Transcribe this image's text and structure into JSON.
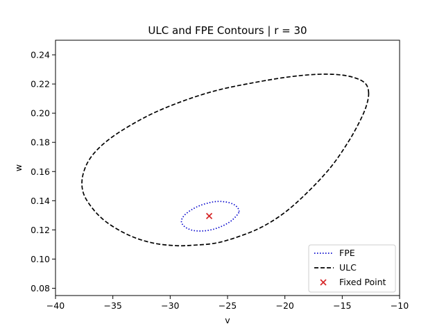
{
  "chart_data": {
    "type": "line",
    "title": "ULC and FPE Contours | r = 30",
    "xlabel": "v",
    "ylabel": "w",
    "xlim": [
      -40,
      -10
    ],
    "ylim": [
      0.075,
      0.25
    ],
    "xticks": [
      -40,
      -35,
      -30,
      -25,
      -20,
      -15,
      -10
    ],
    "xtick_labels": [
      "−40",
      "−35",
      "−30",
      "−25",
      "−20",
      "−15",
      "−10"
    ],
    "yticks": [
      0.08,
      0.1,
      0.12,
      0.14,
      0.16,
      0.18,
      0.2,
      0.22,
      0.24
    ],
    "ytick_labels": [
      "0.08",
      "0.10",
      "0.12",
      "0.14",
      "0.16",
      "0.18",
      "0.20",
      "0.22",
      "0.24"
    ],
    "grid": false,
    "legend_position": "bottom-right",
    "series": [
      {
        "name": "FPE",
        "style": "dotted",
        "color": "#0000cc",
        "x": [
          -24.0,
          -24.15,
          -24.55,
          -25.2,
          -25.9,
          -26.6,
          -27.4,
          -28.1,
          -28.7,
          -29.0,
          -28.95,
          -28.55,
          -27.9,
          -27.1,
          -26.3,
          -25.5,
          -24.8,
          -24.3,
          -24.0
        ],
        "y": [
          0.1325,
          0.1355,
          0.1378,
          0.1392,
          0.1395,
          0.1386,
          0.1367,
          0.134,
          0.1305,
          0.127,
          0.124,
          0.1212,
          0.1195,
          0.1193,
          0.1203,
          0.1225,
          0.1255,
          0.129,
          0.1325
        ]
      },
      {
        "name": "ULC",
        "style": "dashed",
        "color": "#000000",
        "x": [
          -12.7,
          -12.9,
          -13.5,
          -14.5,
          -16.0,
          -18.0,
          -20.0,
          -22.0,
          -24.0,
          -26.0,
          -28.0,
          -29.5,
          -31.5,
          -33.5,
          -35.5,
          -36.8,
          -37.6,
          -37.6,
          -36.8,
          -35.0,
          -32.0,
          -29.0,
          -26.0,
          -23.0,
          -20.0,
          -17.5,
          -15.5,
          -14.0,
          -13.0,
          -12.7
        ],
        "y": [
          0.214,
          0.205,
          0.194,
          0.18,
          0.163,
          0.146,
          0.132,
          0.122,
          0.1155,
          0.111,
          0.1095,
          0.1092,
          0.111,
          0.116,
          0.125,
          0.135,
          0.146,
          0.158,
          0.171,
          0.184,
          0.198,
          0.208,
          0.2155,
          0.2205,
          0.2245,
          0.2265,
          0.2265,
          0.2245,
          0.2205,
          0.214
        ]
      }
    ],
    "fixed_point": {
      "name": "Fixed Point",
      "x": -26.6,
      "y": 0.1295,
      "marker": "x",
      "color": "#d62728"
    },
    "legend": [
      {
        "label": "FPE",
        "style": "dotted",
        "color": "#0000cc"
      },
      {
        "label": "ULC",
        "style": "dashed",
        "color": "#000000"
      },
      {
        "label": "Fixed Point",
        "style": "marker-x",
        "color": "#d62728"
      }
    ]
  }
}
